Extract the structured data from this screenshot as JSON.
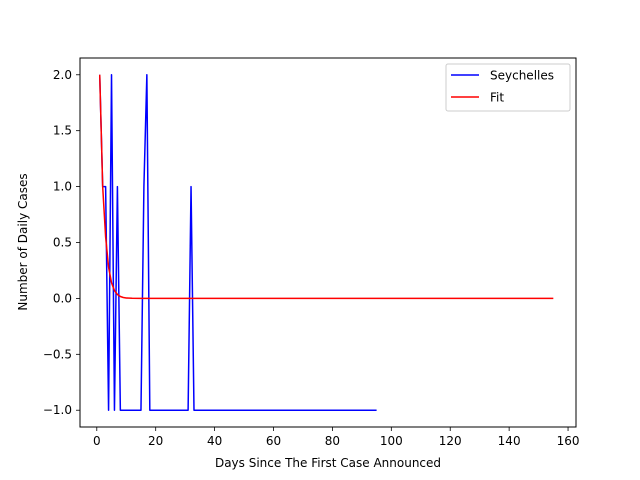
{
  "chart_data": {
    "type": "line",
    "title": "",
    "xlabel": "Days Since The First Case Announced",
    "ylabel": "Number of Daily Cases",
    "xlim": [
      -5.7,
      162.7
    ],
    "ylim": [
      -1.15,
      2.15
    ],
    "xticks": [
      0,
      20,
      40,
      60,
      80,
      100,
      120,
      140,
      160
    ],
    "xtick_labels": [
      "0",
      "20",
      "40",
      "60",
      "80",
      "100",
      "120",
      "140",
      "160"
    ],
    "yticks": [
      -1.0,
      -0.5,
      0.0,
      0.5,
      1.0,
      1.5,
      2.0
    ],
    "ytick_labels": [
      "−1.0",
      "−0.5",
      "0.0",
      "0.5",
      "1.0",
      "1.5",
      "2.0"
    ],
    "grid": false,
    "legend_position": "top-right",
    "series": [
      {
        "name": "Seychelles",
        "color": "#0000ff",
        "x": [
          1,
          2,
          3,
          4,
          5,
          6,
          7,
          8,
          15,
          16,
          17,
          18,
          31,
          32,
          33,
          95
        ],
        "y": [
          2,
          1,
          1,
          -1,
          2,
          -1,
          1,
          -1,
          -1,
          1,
          2,
          -1,
          -1,
          1,
          -1,
          -1
        ]
      },
      {
        "name": "Fit",
        "color": "#ff0000",
        "x": [
          1,
          2,
          3,
          4,
          5,
          6,
          7,
          8,
          9,
          10,
          12,
          15,
          20,
          40,
          80,
          120,
          155
        ],
        "y": [
          2.0,
          1.0,
          0.55,
          0.28,
          0.14,
          0.07,
          0.035,
          0.017,
          0.008,
          0.004,
          0.001,
          0.0,
          0.0,
          0.0,
          0.0,
          0.0,
          0.0
        ]
      }
    ]
  }
}
